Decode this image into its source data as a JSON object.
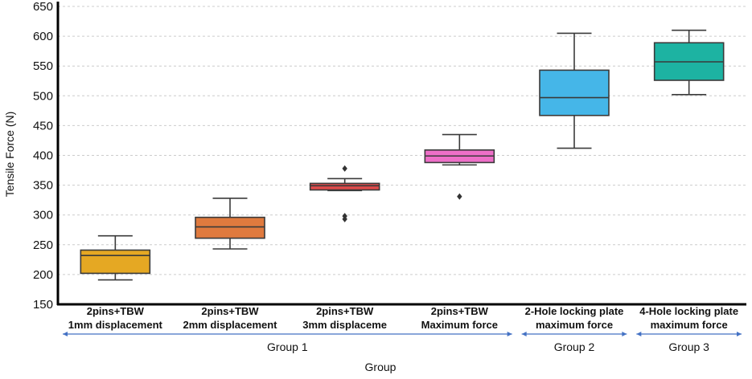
{
  "chart_data": {
    "type": "box",
    "title": "",
    "xlabel": "Group",
    "ylabel": "Tensile Force (N)",
    "ylim": [
      150,
      650
    ],
    "yticks": [
      150,
      200,
      250,
      300,
      350,
      400,
      450,
      500,
      550,
      600,
      650
    ],
    "grid": "horizontal dashed",
    "categories": [
      {
        "line1": "2pins+TBW",
        "line2": "1mm displacement",
        "color": "#E5A823",
        "whisker_low": 191,
        "q1": 202,
        "median": 232,
        "q3": 241,
        "whisker_high": 265,
        "outliers": []
      },
      {
        "line1": "2pins+TBW",
        "line2": "2mm displacement",
        "color": "#E07A3E",
        "whisker_low": 243,
        "q1": 261,
        "median": 280,
        "q3": 296,
        "whisker_high": 328,
        "outliers": []
      },
      {
        "line1": "2pins+TBW",
        "line2": "3mm displaceme",
        "color": "#E04B4B",
        "whisker_low": 341,
        "q1": 342,
        "median": 349,
        "q3": 353,
        "whisker_high": 361,
        "outliers": [
          378,
          298,
          293
        ]
      },
      {
        "line1": "2pins+TBW",
        "line2": "Maximum force",
        "color": "#EE6FC8",
        "whisker_low": 384,
        "q1": 388,
        "median": 399,
        "q3": 409,
        "whisker_high": 435,
        "outliers": [
          331
        ]
      },
      {
        "line1": "2-Hole locking plate",
        "line2": "maximum force",
        "color": "#45B6E8",
        "whisker_low": 412,
        "q1": 467,
        "median": 497,
        "q3": 543,
        "whisker_high": 605,
        "outliers": []
      },
      {
        "line1": "4-Hole locking plate",
        "line2": "maximum force",
        "color": "#1DB3A2",
        "whisker_low": 502,
        "q1": 526,
        "median": 557,
        "q3": 589,
        "whisker_high": 610,
        "outliers": []
      }
    ],
    "groups": [
      {
        "label": "Group 1",
        "first_category": 0,
        "last_category": 3
      },
      {
        "label": "Group 2",
        "first_category": 4,
        "last_category": 4
      },
      {
        "label": "Group 3",
        "first_category": 5,
        "last_category": 5
      }
    ],
    "colors": {
      "axis": "#000000",
      "grid": "#cccccc",
      "box_edge": "#3a3a3a",
      "group_arrow": "#4472C4"
    }
  }
}
